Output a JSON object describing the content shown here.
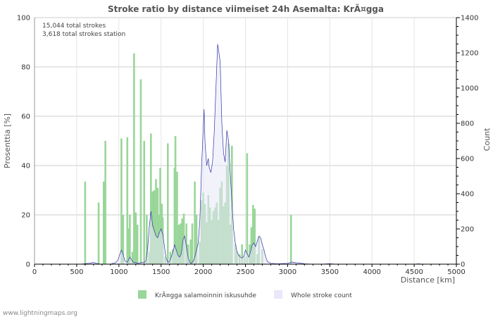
{
  "chart_data": {
    "type": "bar",
    "title": "Stroke ratio by distance viimeiset 24h Asemalta: KrÃ¤gga",
    "xlabel": "Distance   [km]",
    "ylabel_left": "Prosenttia   [%]",
    "ylabel_right": "Count",
    "xlim": [
      0,
      5000
    ],
    "ylim_left": [
      0,
      100
    ],
    "ylim_right": [
      0,
      1400
    ],
    "x_ticks": [
      "0",
      "500",
      "1000",
      "1500",
      "2000",
      "2500",
      "3000",
      "3500",
      "4000",
      "4500",
      "5000"
    ],
    "y_left_ticks": [
      "0",
      "20",
      "40",
      "60",
      "80",
      "100"
    ],
    "y_right_ticks": [
      "0",
      "200",
      "400",
      "600",
      "800",
      "1000",
      "1200",
      "1400"
    ],
    "annotations": [
      "15,044 total strokes",
      "3,618 total strokes station"
    ],
    "grid": true,
    "legend_position": "bottom",
    "series": [
      {
        "name": "KrÃ¤gga salamoinnin iskusuhde",
        "kind": "bar",
        "axis": "left",
        "color": "#99d699",
        "points": [
          [
            600,
            33.5
          ],
          [
            760,
            25
          ],
          [
            820,
            33.5
          ],
          [
            840,
            50
          ],
          [
            1030,
            51
          ],
          [
            1050,
            20
          ],
          [
            1100,
            51.5
          ],
          [
            1120,
            14.5
          ],
          [
            1130,
            20
          ],
          [
            1160,
            5
          ],
          [
            1180,
            85.5
          ],
          [
            1200,
            21
          ],
          [
            1220,
            16
          ],
          [
            1260,
            75
          ],
          [
            1300,
            50
          ],
          [
            1330,
            20
          ],
          [
            1360,
            5
          ],
          [
            1380,
            53
          ],
          [
            1400,
            29.5
          ],
          [
            1420,
            30
          ],
          [
            1440,
            34.5
          ],
          [
            1460,
            31
          ],
          [
            1470,
            20
          ],
          [
            1490,
            39
          ],
          [
            1510,
            24.5
          ],
          [
            1520,
            19
          ],
          [
            1550,
            3
          ],
          [
            1580,
            49
          ],
          [
            1610,
            5
          ],
          [
            1640,
            6
          ],
          [
            1660,
            39
          ],
          [
            1670,
            52
          ],
          [
            1690,
            37.5
          ],
          [
            1710,
            16
          ],
          [
            1730,
            16.5
          ],
          [
            1750,
            18.5
          ],
          [
            1770,
            20.5
          ],
          [
            1800,
            16.5
          ],
          [
            1820,
            8
          ],
          [
            1850,
            10
          ],
          [
            1870,
            16.5
          ],
          [
            1900,
            33.5
          ],
          [
            1920,
            20
          ],
          [
            1960,
            9
          ],
          [
            1980,
            26
          ],
          [
            2000,
            29
          ],
          [
            2020,
            24.5
          ],
          [
            2040,
            17
          ],
          [
            2060,
            28
          ],
          [
            2080,
            23
          ],
          [
            2100,
            18
          ],
          [
            2120,
            21.5
          ],
          [
            2140,
            23
          ],
          [
            2160,
            25
          ],
          [
            2180,
            18
          ],
          [
            2200,
            31
          ],
          [
            2220,
            33.5
          ],
          [
            2240,
            23.5
          ],
          [
            2260,
            25
          ],
          [
            2280,
            40
          ],
          [
            2300,
            49
          ],
          [
            2320,
            16
          ],
          [
            2340,
            48
          ],
          [
            2380,
            8
          ],
          [
            2400,
            5
          ],
          [
            2430,
            4
          ],
          [
            2460,
            8
          ],
          [
            2490,
            3
          ],
          [
            2520,
            45
          ],
          [
            2550,
            8
          ],
          [
            2570,
            15
          ],
          [
            2590,
            24
          ],
          [
            2610,
            22.5
          ],
          [
            2640,
            4
          ],
          [
            2660,
            11
          ],
          [
            2700,
            6
          ],
          [
            3040,
            20
          ]
        ]
      },
      {
        "name": "Whole stroke count",
        "kind": "area",
        "axis": "right",
        "color": "#e8e8f8",
        "line_color": "#3333aa",
        "points": [
          [
            0,
            0
          ],
          [
            550,
            0
          ],
          [
            600,
            3
          ],
          [
            650,
            5
          ],
          [
            700,
            10
          ],
          [
            730,
            5
          ],
          [
            780,
            0
          ],
          [
            900,
            0
          ],
          [
            960,
            8
          ],
          [
            990,
            25
          ],
          [
            1010,
            55
          ],
          [
            1030,
            80
          ],
          [
            1050,
            55
          ],
          [
            1070,
            20
          ],
          [
            1100,
            10
          ],
          [
            1130,
            40
          ],
          [
            1150,
            25
          ],
          [
            1170,
            10
          ],
          [
            1200,
            8
          ],
          [
            1230,
            4
          ],
          [
            1270,
            10
          ],
          [
            1300,
            8
          ],
          [
            1320,
            20
          ],
          [
            1340,
            80
          ],
          [
            1360,
            210
          ],
          [
            1380,
            300
          ],
          [
            1400,
            220
          ],
          [
            1420,
            190
          ],
          [
            1440,
            160
          ],
          [
            1460,
            150
          ],
          [
            1480,
            180
          ],
          [
            1500,
            200
          ],
          [
            1520,
            170
          ],
          [
            1540,
            100
          ],
          [
            1560,
            35
          ],
          [
            1580,
            10
          ],
          [
            1600,
            15
          ],
          [
            1620,
            40
          ],
          [
            1640,
            70
          ],
          [
            1660,
            110
          ],
          [
            1680,
            80
          ],
          [
            1700,
            50
          ],
          [
            1720,
            40
          ],
          [
            1740,
            60
          ],
          [
            1760,
            140
          ],
          [
            1780,
            160
          ],
          [
            1800,
            100
          ],
          [
            1820,
            40
          ],
          [
            1840,
            10
          ],
          [
            1860,
            5
          ],
          [
            1880,
            15
          ],
          [
            1900,
            40
          ],
          [
            1920,
            80
          ],
          [
            1940,
            120
          ],
          [
            1960,
            250
          ],
          [
            1980,
            550
          ],
          [
            2000,
            780
          ],
          [
            2010,
            880
          ],
          [
            2020,
            700
          ],
          [
            2040,
            560
          ],
          [
            2060,
            600
          ],
          [
            2070,
            550
          ],
          [
            2090,
            520
          ],
          [
            2110,
            580
          ],
          [
            2130,
            750
          ],
          [
            2150,
            1000
          ],
          [
            2170,
            1250
          ],
          [
            2180,
            1220
          ],
          [
            2200,
            1150
          ],
          [
            2220,
            800
          ],
          [
            2240,
            630
          ],
          [
            2260,
            580
          ],
          [
            2280,
            760
          ],
          [
            2300,
            700
          ],
          [
            2320,
            520
          ],
          [
            2340,
            350
          ],
          [
            2360,
            200
          ],
          [
            2380,
            120
          ],
          [
            2400,
            70
          ],
          [
            2420,
            50
          ],
          [
            2440,
            40
          ],
          [
            2460,
            35
          ],
          [
            2480,
            45
          ],
          [
            2500,
            80
          ],
          [
            2520,
            60
          ],
          [
            2540,
            40
          ],
          [
            2560,
            70
          ],
          [
            2580,
            110
          ],
          [
            2600,
            120
          ],
          [
            2620,
            100
          ],
          [
            2640,
            130
          ],
          [
            2660,
            160
          ],
          [
            2680,
            150
          ],
          [
            2700,
            110
          ],
          [
            2720,
            80
          ],
          [
            2740,
            40
          ],
          [
            2760,
            15
          ],
          [
            2800,
            5
          ],
          [
            2850,
            3
          ],
          [
            2900,
            2
          ],
          [
            3000,
            5
          ],
          [
            3050,
            12
          ],
          [
            3100,
            8
          ],
          [
            3150,
            6
          ],
          [
            3200,
            2
          ],
          [
            3300,
            0
          ],
          [
            3400,
            0
          ],
          [
            3500,
            3
          ],
          [
            3550,
            1
          ],
          [
            3700,
            0
          ],
          [
            4500,
            0
          ],
          [
            4550,
            2
          ],
          [
            4600,
            0
          ],
          [
            5000,
            0
          ]
        ]
      }
    ]
  },
  "legend": {
    "item1_label": "KrÃ¤gga salamoinnin iskusuhde",
    "item2_label": "Whole stroke count"
  },
  "credit": "www.lightningmaps.org",
  "colors": {
    "grid": "#cccccc",
    "axis": "#000000",
    "bar": "#99d699",
    "area_fill": "#e8e8f8",
    "area_line": "#3333aa"
  }
}
